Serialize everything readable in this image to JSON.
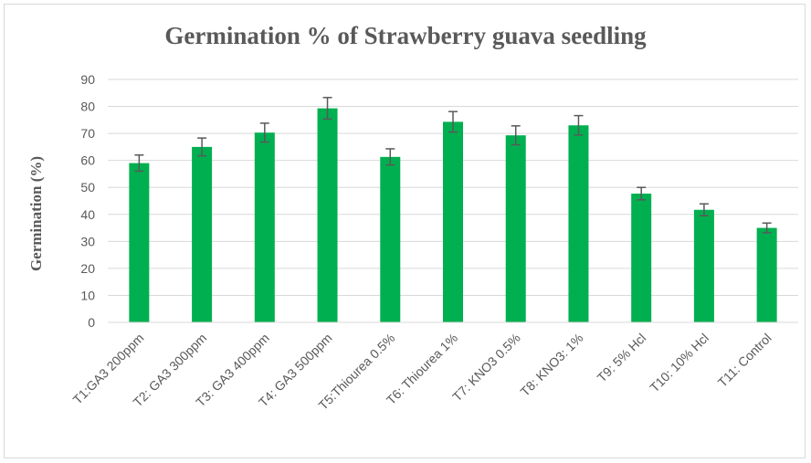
{
  "chart_data": {
    "type": "bar",
    "title": "Germination % of Strawberry guava seedling",
    "xlabel": "",
    "ylabel": "Germination (%)",
    "ylim": [
      0,
      90
    ],
    "yticks": [
      0,
      10,
      20,
      30,
      40,
      50,
      60,
      70,
      80,
      90
    ],
    "grid": true,
    "bar_color": "#00b050",
    "errorbar_color": "#595959",
    "categories": [
      "T1:GA3 200ppm",
      "T2: GA3 300ppm",
      "T3: GA3 400ppm",
      "T4: GA3 500ppm",
      "T5:Thiourea 0.5%",
      "T6: Thiourea 1%",
      "T7: KNO3 0.5%",
      "T8: KNO3: 1%",
      "T9: 5% Hcl",
      "T10: 10% Hcl",
      "T11: Control"
    ],
    "values": [
      59,
      65,
      70.3,
      79.3,
      61.3,
      74.3,
      69.3,
      73,
      47.7,
      41.7,
      35
    ],
    "errors": [
      3,
      3.3,
      3.5,
      4,
      3,
      3.8,
      3.5,
      3.6,
      2.3,
      2.2,
      1.8
    ]
  }
}
